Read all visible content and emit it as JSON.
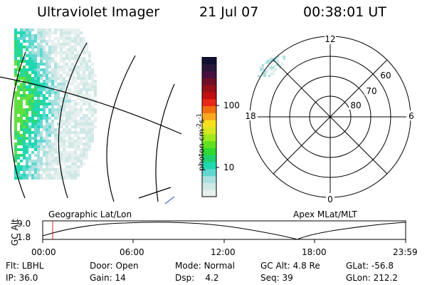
{
  "header": {
    "instrument": "Ultraviolet Imager",
    "date": "21 Jul 07",
    "time": "00:38:01 UT"
  },
  "colorbar": {
    "unit_label": "photon cm",
    "unit_exp1": "-2",
    "unit_s": "s",
    "unit_exp2": "-1",
    "ticks": [
      "100",
      "10"
    ],
    "colors": [
      "#e6f0ee",
      "#cfe8e6",
      "#a8e0e0",
      "#60d8d0",
      "#20d8b0",
      "#20d070",
      "#30d830",
      "#60e020",
      "#a0e820",
      "#d8e820",
      "#f8e020",
      "#f8a820",
      "#f07010",
      "#e82818",
      "#c01010",
      "#981018",
      "#701028",
      "#481040",
      "#281838",
      "#101030"
    ]
  },
  "map_left": {
    "caption": "Geographic Lat/Lon"
  },
  "map_right": {
    "caption": "Apex MLat/MLT",
    "mlt_labels": {
      "top": "12",
      "bottom": "0",
      "left": "18",
      "right": "6"
    },
    "lat_labels": [
      "60",
      "70",
      "80"
    ]
  },
  "altitude_plot": {
    "ylabel": "GC Alt",
    "yticks": [
      "9.0",
      "1.8"
    ],
    "xticks": [
      "00:00",
      "06:00",
      "12:00",
      "18:00",
      "23:59"
    ]
  },
  "status": {
    "flt_label": "Flt:",
    "flt_value": "LBHL",
    "ip_label": "IP:",
    "ip_value": "36.0",
    "door_label": "Door:",
    "door_value": "Open",
    "gain_label": "Gain:",
    "gain_value": "14",
    "mode_label": "Mode:",
    "mode_value": "Normal",
    "dsp_label": "Dsp:",
    "dsp_value": "4.2",
    "gcalt_label": "GC Alt:",
    "gcalt_value": "4.8 Re",
    "seq_label": "Seq:",
    "seq_value": "39",
    "glat_label": "GLat:",
    "glat_value": "-56.8",
    "glon_label": "GLon:",
    "glon_value": "212.2"
  }
}
